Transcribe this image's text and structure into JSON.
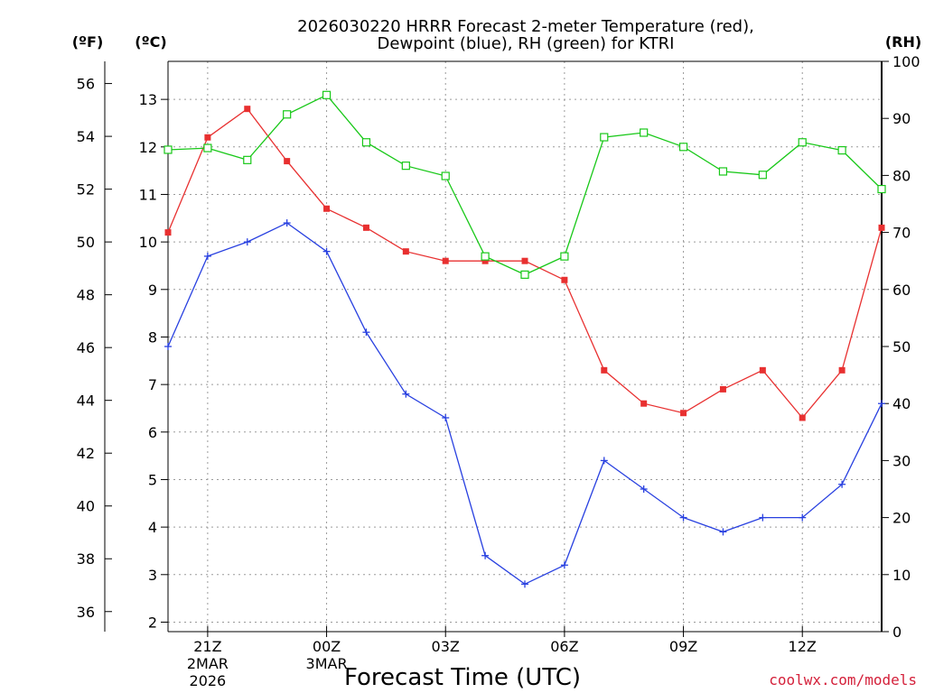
{
  "chart_data": {
    "type": "line",
    "title": [
      "2026030220 HRRR Forecast 2-meter Temperature (red),",
      "Dewpoint (blue), RH (green) for KTRI"
    ],
    "xlabel": "Forecast Time (UTC)",
    "credit": "coolwx.com/models",
    "units": {
      "fahrenheit": "(ºF)",
      "celsius": "(ºC)",
      "rh": "(RH)"
    },
    "x": [
      20,
      21,
      22,
      23,
      24,
      25,
      26,
      27,
      28,
      29,
      30,
      31,
      32,
      33,
      34,
      35,
      36,
      37,
      38
    ],
    "xlim": [
      20,
      38
    ],
    "x_ticks": [
      {
        "x": 21,
        "label": "21Z",
        "sub": [
          "2MAR",
          "2026"
        ]
      },
      {
        "x": 24,
        "label": "00Z",
        "sub": [
          "3MAR"
        ]
      },
      {
        "x": 27,
        "label": "03Z",
        "sub": []
      },
      {
        "x": 30,
        "label": "06Z",
        "sub": []
      },
      {
        "x": 33,
        "label": "09Z",
        "sub": []
      },
      {
        "x": 36,
        "label": "12Z",
        "sub": []
      }
    ],
    "ylim_celsius": [
      1.8,
      13.8
    ],
    "ylim_rh": [
      0,
      100
    ],
    "fahrenheit_ticks": [
      "36",
      "38",
      "40",
      "42",
      "44",
      "46",
      "48",
      "50",
      "52",
      "54",
      "56"
    ],
    "celsius_ticks": [
      "2",
      "3",
      "4",
      "5",
      "6",
      "7",
      "8",
      "9",
      "10",
      "11",
      "12",
      "13"
    ],
    "rh_ticks": [
      "0",
      "10",
      "20",
      "30",
      "40",
      "50",
      "60",
      "70",
      "80",
      "90",
      "100"
    ],
    "grid": true,
    "series": [
      {
        "name": "Temperature",
        "color": "#e83030",
        "marker": "square-filled",
        "axis": "celsius",
        "values": [
          10.2,
          12.2,
          12.8,
          11.7,
          10.7,
          10.3,
          9.8,
          9.6,
          9.6,
          9.6,
          9.2,
          7.3,
          6.6,
          6.4,
          6.9,
          7.3,
          6.3,
          7.3,
          10.3
        ]
      },
      {
        "name": "Dewpoint",
        "color": "#2840e0",
        "marker": "plus",
        "axis": "celsius",
        "values": [
          7.8,
          9.7,
          10.0,
          10.4,
          9.8,
          8.1,
          6.8,
          6.3,
          3.4,
          2.8,
          3.2,
          5.4,
          4.8,
          4.2,
          3.9,
          4.2,
          4.2,
          4.9,
          6.6
        ]
      },
      {
        "name": "RH",
        "color": "#18c818",
        "marker": "square-open",
        "axis": "rh",
        "values": [
          84.5,
          84.8,
          82.7,
          90.7,
          94.1,
          85.8,
          81.7,
          79.9,
          65.8,
          62.6,
          65.8,
          86.7,
          87.5,
          85.0,
          80.7,
          80.1,
          85.8,
          84.4,
          77.6
        ]
      }
    ]
  }
}
